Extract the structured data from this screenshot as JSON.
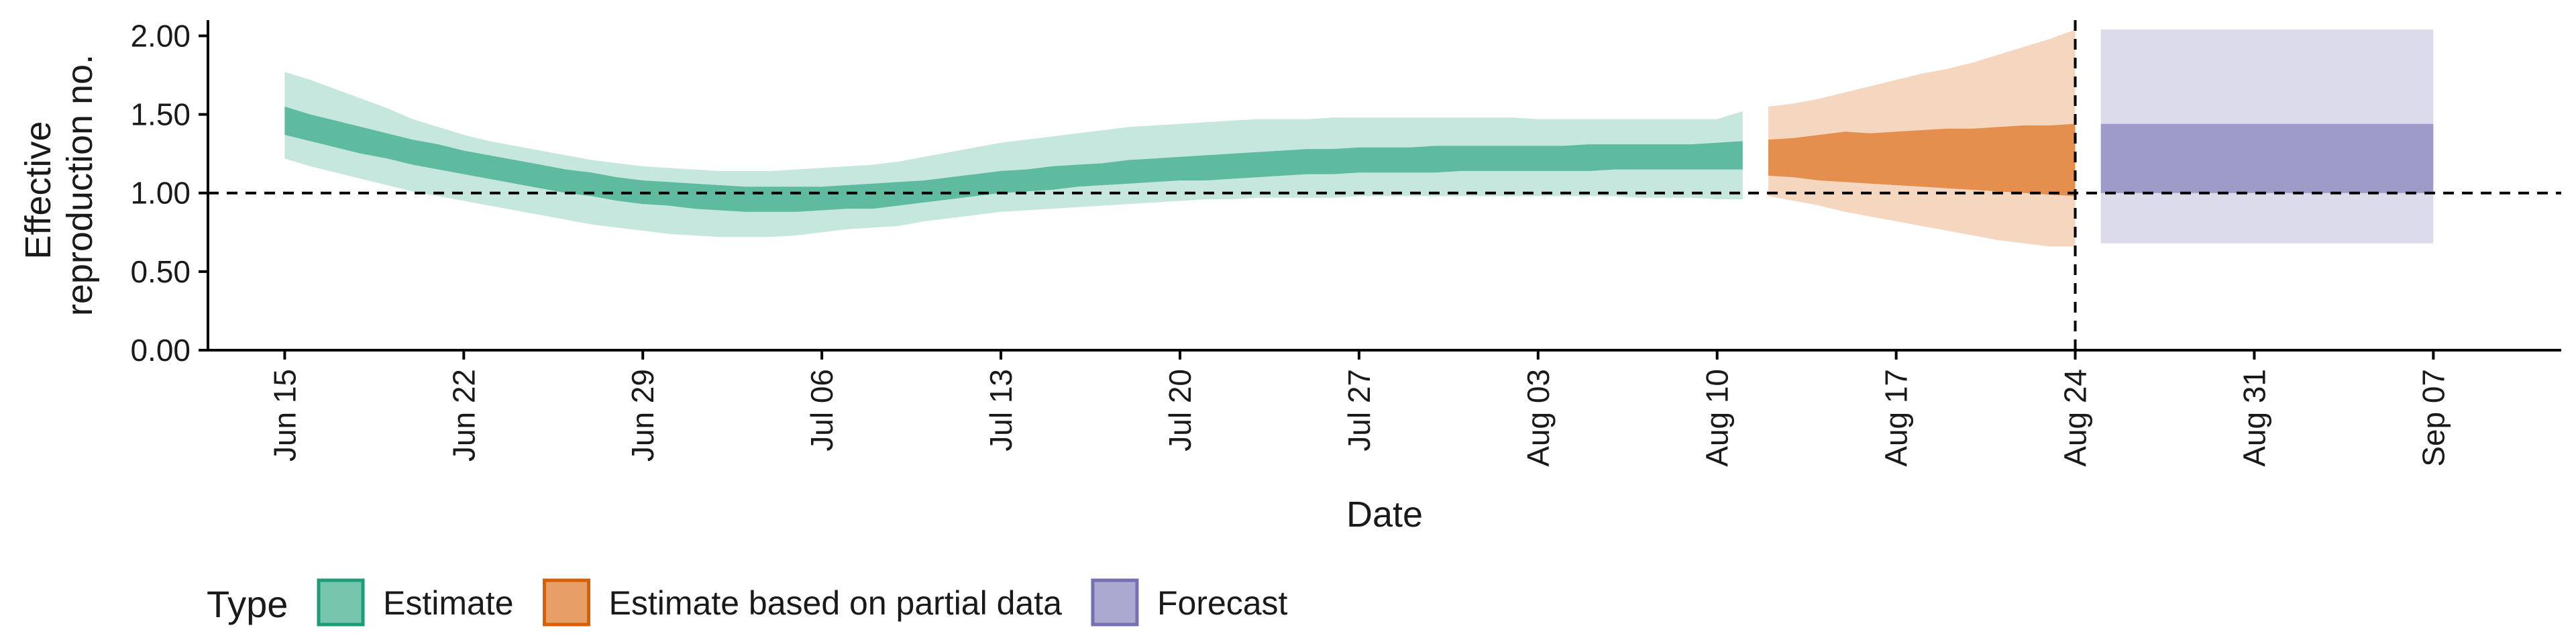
{
  "chart_data": {
    "type": "area",
    "xlabel": "Date",
    "ylabel": [
      "Effective",
      "reproduction no."
    ],
    "ylim": [
      0,
      2.1
    ],
    "xlim": [
      "2020-06-12",
      "2020-09-12"
    ],
    "yticks": [
      {
        "value": 0,
        "label": "0.00"
      },
      {
        "value": 0.5,
        "label": "0.50"
      },
      {
        "value": 1,
        "label": "1.00"
      },
      {
        "value": 1.5,
        "label": "1.50"
      },
      {
        "value": 2,
        "label": "2.00"
      }
    ],
    "xticks": [
      {
        "date": "2020-06-15",
        "label": "Jun 15"
      },
      {
        "date": "2020-06-22",
        "label": "Jun 22"
      },
      {
        "date": "2020-06-29",
        "label": "Jun 29"
      },
      {
        "date": "2020-07-06",
        "label": "Jul 06"
      },
      {
        "date": "2020-07-13",
        "label": "Jul 13"
      },
      {
        "date": "2020-07-20",
        "label": "Jul 20"
      },
      {
        "date": "2020-07-27",
        "label": "Jul 27"
      },
      {
        "date": "2020-08-03",
        "label": "Aug 03"
      },
      {
        "date": "2020-08-10",
        "label": "Aug 10"
      },
      {
        "date": "2020-08-17",
        "label": "Aug 17"
      },
      {
        "date": "2020-08-24",
        "label": "Aug 24"
      },
      {
        "date": "2020-08-31",
        "label": "Aug 31"
      },
      {
        "date": "2020-09-07",
        "label": "Sep 07"
      }
    ],
    "reference_line": 1.0,
    "vertical_line": "2020-08-24",
    "grid": false,
    "legend_position": "bottom-left",
    "legend_title": "Type",
    "series": [
      {
        "name": "Estimate",
        "color": "#1b9e77",
        "x": [
          "2020-06-15",
          "2020-06-16",
          "2020-06-17",
          "2020-06-18",
          "2020-06-19",
          "2020-06-20",
          "2020-06-21",
          "2020-06-22",
          "2020-06-23",
          "2020-06-24",
          "2020-06-25",
          "2020-06-26",
          "2020-06-27",
          "2020-06-28",
          "2020-06-29",
          "2020-06-30",
          "2020-07-01",
          "2020-07-02",
          "2020-07-03",
          "2020-07-04",
          "2020-07-05",
          "2020-07-06",
          "2020-07-07",
          "2020-07-08",
          "2020-07-09",
          "2020-07-10",
          "2020-07-11",
          "2020-07-12",
          "2020-07-13",
          "2020-07-14",
          "2020-07-15",
          "2020-07-16",
          "2020-07-17",
          "2020-07-18",
          "2020-07-19",
          "2020-07-20",
          "2020-07-21",
          "2020-07-22",
          "2020-07-23",
          "2020-07-24",
          "2020-07-25",
          "2020-07-26",
          "2020-07-27",
          "2020-07-28",
          "2020-07-29",
          "2020-07-30",
          "2020-07-31",
          "2020-08-01",
          "2020-08-02",
          "2020-08-03",
          "2020-08-04",
          "2020-08-05",
          "2020-08-06",
          "2020-08-07",
          "2020-08-08",
          "2020-08-09",
          "2020-08-10",
          "2020-08-11"
        ],
        "lower_90": [
          1.22,
          1.17,
          1.13,
          1.09,
          1.05,
          1.01,
          0.98,
          0.95,
          0.92,
          0.89,
          0.86,
          0.83,
          0.8,
          0.78,
          0.76,
          0.74,
          0.73,
          0.72,
          0.72,
          0.72,
          0.73,
          0.75,
          0.77,
          0.78,
          0.79,
          0.82,
          0.84,
          0.86,
          0.88,
          0.89,
          0.9,
          0.91,
          0.92,
          0.93,
          0.94,
          0.95,
          0.96,
          0.96,
          0.97,
          0.97,
          0.97,
          0.97,
          0.98,
          0.98,
          0.98,
          0.98,
          0.98,
          0.98,
          0.98,
          0.98,
          0.98,
          0.98,
          0.98,
          0.97,
          0.97,
          0.97,
          0.96,
          0.96
        ],
        "lower_50": [
          1.37,
          1.33,
          1.29,
          1.25,
          1.22,
          1.18,
          1.15,
          1.12,
          1.09,
          1.06,
          1.03,
          1.0,
          0.98,
          0.95,
          0.93,
          0.92,
          0.9,
          0.89,
          0.88,
          0.88,
          0.88,
          0.89,
          0.9,
          0.9,
          0.92,
          0.94,
          0.96,
          0.98,
          1.0,
          1.01,
          1.02,
          1.04,
          1.05,
          1.06,
          1.07,
          1.08,
          1.08,
          1.09,
          1.1,
          1.11,
          1.12,
          1.12,
          1.13,
          1.13,
          1.13,
          1.13,
          1.14,
          1.14,
          1.14,
          1.14,
          1.14,
          1.14,
          1.15,
          1.15,
          1.15,
          1.15,
          1.15,
          1.15
        ],
        "upper_50": [
          1.55,
          1.5,
          1.46,
          1.42,
          1.38,
          1.34,
          1.31,
          1.27,
          1.24,
          1.21,
          1.18,
          1.15,
          1.13,
          1.1,
          1.08,
          1.07,
          1.06,
          1.05,
          1.04,
          1.04,
          1.04,
          1.04,
          1.05,
          1.06,
          1.07,
          1.08,
          1.1,
          1.12,
          1.14,
          1.15,
          1.17,
          1.18,
          1.19,
          1.21,
          1.22,
          1.23,
          1.24,
          1.25,
          1.26,
          1.27,
          1.28,
          1.28,
          1.29,
          1.29,
          1.29,
          1.3,
          1.3,
          1.3,
          1.3,
          1.3,
          1.3,
          1.31,
          1.31,
          1.31,
          1.31,
          1.31,
          1.32,
          1.33
        ],
        "upper_90": [
          1.77,
          1.72,
          1.66,
          1.6,
          1.54,
          1.47,
          1.42,
          1.37,
          1.33,
          1.3,
          1.27,
          1.24,
          1.21,
          1.19,
          1.17,
          1.16,
          1.15,
          1.14,
          1.14,
          1.14,
          1.15,
          1.16,
          1.17,
          1.18,
          1.2,
          1.23,
          1.26,
          1.29,
          1.32,
          1.34,
          1.36,
          1.38,
          1.4,
          1.42,
          1.43,
          1.44,
          1.45,
          1.46,
          1.47,
          1.47,
          1.47,
          1.48,
          1.48,
          1.48,
          1.48,
          1.48,
          1.48,
          1.48,
          1.48,
          1.47,
          1.47,
          1.47,
          1.47,
          1.47,
          1.47,
          1.47,
          1.47,
          1.52
        ]
      },
      {
        "name": "Estimate based on partial data",
        "color": "#d95f02",
        "x": [
          "2020-08-12",
          "2020-08-13",
          "2020-08-14",
          "2020-08-15",
          "2020-08-16",
          "2020-08-17",
          "2020-08-18",
          "2020-08-19",
          "2020-08-20",
          "2020-08-21",
          "2020-08-22",
          "2020-08-23",
          "2020-08-24"
        ],
        "lower_90": [
          0.98,
          0.95,
          0.92,
          0.88,
          0.85,
          0.82,
          0.79,
          0.76,
          0.73,
          0.7,
          0.68,
          0.66,
          0.66
        ],
        "lower_50": [
          1.11,
          1.1,
          1.08,
          1.07,
          1.06,
          1.05,
          1.04,
          1.03,
          1.02,
          1.01,
          1.0,
          0.99,
          0.98
        ],
        "upper_50": [
          1.34,
          1.35,
          1.37,
          1.39,
          1.38,
          1.39,
          1.4,
          1.41,
          1.41,
          1.42,
          1.43,
          1.43,
          1.44
        ],
        "upper_90": [
          1.55,
          1.57,
          1.6,
          1.64,
          1.68,
          1.72,
          1.76,
          1.79,
          1.83,
          1.88,
          1.93,
          1.98,
          2.04
        ]
      },
      {
        "name": "Forecast",
        "color": "#7570b3",
        "x": [
          "2020-08-25",
          "2020-09-07"
        ],
        "lower_90": [
          0.68,
          0.68
        ],
        "lower_50": [
          1.0,
          1.0
        ],
        "upper_50": [
          1.44,
          1.44
        ],
        "upper_90": [
          2.04,
          2.04
        ]
      }
    ]
  }
}
